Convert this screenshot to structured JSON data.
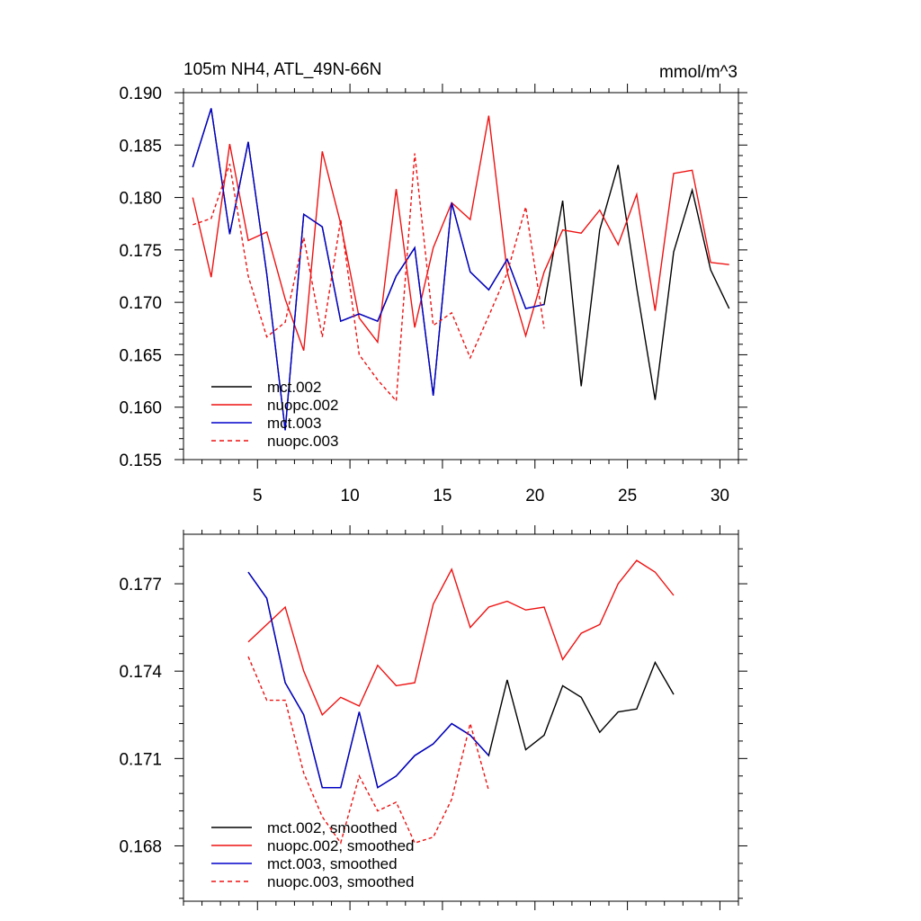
{
  "chart_data": [
    {
      "type": "line",
      "title": "105m NH4, ATL_49N-66N",
      "units": "mmol/m^3",
      "xlabel": "",
      "ylabel": "",
      "xlim": [
        1,
        31
      ],
      "ylim": [
        0.155,
        0.19
      ],
      "xticks": [
        5,
        10,
        15,
        20,
        25,
        30
      ],
      "yticks": [
        0.155,
        0.16,
        0.165,
        0.17,
        0.175,
        0.18,
        0.185,
        0.19
      ],
      "x_tick_labels": [
        "5",
        "10",
        "15",
        "20",
        "25",
        "30"
      ],
      "y_tick_labels": [
        "0.155",
        "0.160",
        "0.165",
        "0.170",
        "0.175",
        "0.180",
        "0.185",
        "0.190"
      ],
      "legend": "bottom-left",
      "series": [
        {
          "name": "mct.002",
          "color": "#000000",
          "dash": "solid",
          "x": [
            1.5,
            2.5,
            3.5,
            4.5,
            5.5,
            6.5,
            7.5,
            8.5,
            9.5,
            10.5,
            11.5,
            12.5,
            13.5,
            14.5,
            15.5,
            16.5,
            17.5,
            18.5,
            19.5,
            20.5,
            21.5,
            22.5,
            23.5,
            24.5,
            25.5,
            26.5,
            27.5,
            28.5,
            29.5,
            30.5
          ],
          "values": [
            0.1829,
            0.1885,
            0.1765,
            0.1853,
            0.1727,
            0.1578,
            0.1784,
            0.1772,
            0.1682,
            0.1689,
            0.1682,
            0.1725,
            0.1752,
            0.1611,
            0.1795,
            0.1729,
            0.1712,
            0.1741,
            0.1694,
            0.1698,
            0.1797,
            0.162,
            0.1769,
            0.1831,
            0.1714,
            0.1607,
            0.1748,
            0.1807,
            0.1731,
            0.1694
          ]
        },
        {
          "name": "nuopc.002",
          "color": "#ee1111",
          "dash": "solid",
          "x": [
            1.5,
            2.5,
            3.5,
            4.5,
            5.5,
            6.5,
            7.5,
            8.5,
            9.5,
            10.5,
            11.5,
            12.5,
            13.5,
            14.5,
            15.5,
            16.5,
            17.5,
            18.5,
            19.5,
            20.5,
            21.5,
            22.5,
            23.5,
            24.5,
            25.5,
            26.5,
            27.5,
            28.5,
            29.5,
            30.5
          ],
          "values": [
            0.18,
            0.1724,
            0.1851,
            0.1759,
            0.1767,
            0.1703,
            0.1654,
            0.1844,
            0.1775,
            0.1685,
            0.1662,
            0.1808,
            0.1676,
            0.1752,
            0.1795,
            0.1779,
            0.1878,
            0.1729,
            0.1668,
            0.1729,
            0.1769,
            0.1766,
            0.1788,
            0.1755,
            0.1803,
            0.1692,
            0.1823,
            0.1826,
            0.1738,
            0.1736
          ]
        },
        {
          "name": "mct.003",
          "color": "#0000cc",
          "dash": "solid",
          "x": [
            1.5,
            2.5,
            3.5,
            4.5,
            5.5,
            6.5,
            7.5,
            8.5,
            9.5,
            10.5,
            11.5,
            12.5,
            13.5,
            14.5,
            15.5,
            16.5,
            17.5,
            18.5,
            19.5,
            20.5
          ],
          "values": [
            0.1829,
            0.1885,
            0.1765,
            0.1853,
            0.1727,
            0.1578,
            0.1784,
            0.1772,
            0.1682,
            0.1689,
            0.1682,
            0.1725,
            0.1752,
            0.1611,
            0.1795,
            0.1729,
            0.1712,
            0.1741,
            0.1694,
            0.1698
          ]
        },
        {
          "name": "nuopc.003",
          "color": "#ee1111",
          "dash": "dashed",
          "x": [
            1.5,
            2.5,
            3.5,
            4.5,
            5.5,
            6.5,
            7.5,
            8.5,
            9.5,
            10.5,
            11.5,
            12.5,
            13.5,
            14.5,
            15.5,
            16.5,
            17.5,
            18.5,
            19.5,
            20.5
          ],
          "values": [
            0.1774,
            0.178,
            0.1832,
            0.1725,
            0.1667,
            0.1681,
            0.1762,
            0.1667,
            0.1779,
            0.165,
            0.1626,
            0.1606,
            0.1842,
            0.1678,
            0.169,
            0.1647,
            0.1687,
            0.1728,
            0.1791,
            0.1675
          ]
        }
      ]
    },
    {
      "type": "line",
      "title": "",
      "xlabel": "",
      "ylabel": "",
      "xlim": [
        1,
        31
      ],
      "ylim": [
        0.1661,
        0.1787
      ],
      "xticks": [
        5,
        10,
        15,
        20,
        25,
        30
      ],
      "yticks": [
        0.168,
        0.171,
        0.174,
        0.177
      ],
      "y_tick_labels": [
        "0.168",
        "0.171",
        "0.174",
        "0.177"
      ],
      "legend": "bottom-left",
      "series": [
        {
          "name": "mct.002, smoothed",
          "color": "#000000",
          "dash": "solid",
          "x": [
            4.5,
            5.5,
            6.5,
            7.5,
            8.5,
            9.5,
            10.5,
            11.5,
            12.5,
            13.5,
            14.5,
            15.5,
            16.5,
            17.5,
            18.5,
            19.5,
            20.5,
            21.5,
            22.5,
            23.5,
            24.5,
            25.5,
            26.5,
            27.5
          ],
          "values": [
            0.1774,
            0.1765,
            0.1736,
            0.1725,
            0.17,
            0.17,
            0.1726,
            0.17,
            0.1704,
            0.1711,
            0.1715,
            0.1722,
            0.1718,
            0.1711,
            0.1737,
            0.1713,
            0.1718,
            0.1735,
            0.1731,
            0.1719,
            0.1726,
            0.1727,
            0.1743,
            0.1732
          ]
        },
        {
          "name": "nuopc.002, smoothed",
          "color": "#ee1111",
          "dash": "solid",
          "x": [
            4.5,
            5.5,
            6.5,
            7.5,
            8.5,
            9.5,
            10.5,
            11.5,
            12.5,
            13.5,
            14.5,
            15.5,
            16.5,
            17.5,
            18.5,
            19.5,
            20.5,
            21.5,
            22.5,
            23.5,
            24.5,
            25.5,
            26.5,
            27.5
          ],
          "values": [
            0.175,
            0.1756,
            0.1762,
            0.174,
            0.1725,
            0.1731,
            0.1728,
            0.1742,
            0.1735,
            0.1736,
            0.1763,
            0.1775,
            0.1755,
            0.1762,
            0.1764,
            0.1761,
            0.1762,
            0.1744,
            0.1753,
            0.1756,
            0.177,
            0.1778,
            0.1774,
            0.1766
          ]
        },
        {
          "name": "mct.003, smoothed",
          "color": "#0000cc",
          "dash": "solid",
          "x": [
            4.5,
            5.5,
            6.5,
            7.5,
            8.5,
            9.5,
            10.5,
            11.5,
            12.5,
            13.5,
            14.5,
            15.5,
            16.5,
            17.5
          ],
          "values": [
            0.1774,
            0.1765,
            0.1736,
            0.1725,
            0.17,
            0.17,
            0.1726,
            0.17,
            0.1704,
            0.1711,
            0.1715,
            0.1722,
            0.1718,
            0.1711
          ]
        },
        {
          "name": "nuopc.003, smoothed",
          "color": "#ee1111",
          "dash": "dashed",
          "x": [
            4.5,
            5.5,
            6.5,
            7.5,
            8.5,
            9.5,
            10.5,
            11.5,
            12.5,
            13.5,
            14.5,
            15.5,
            16.5,
            17.5
          ],
          "values": [
            0.1745,
            0.173,
            0.173,
            0.1705,
            0.169,
            0.1681,
            0.1704,
            0.1692,
            0.1695,
            0.1681,
            0.1683,
            0.1696,
            0.1722,
            0.1699
          ]
        }
      ]
    }
  ]
}
